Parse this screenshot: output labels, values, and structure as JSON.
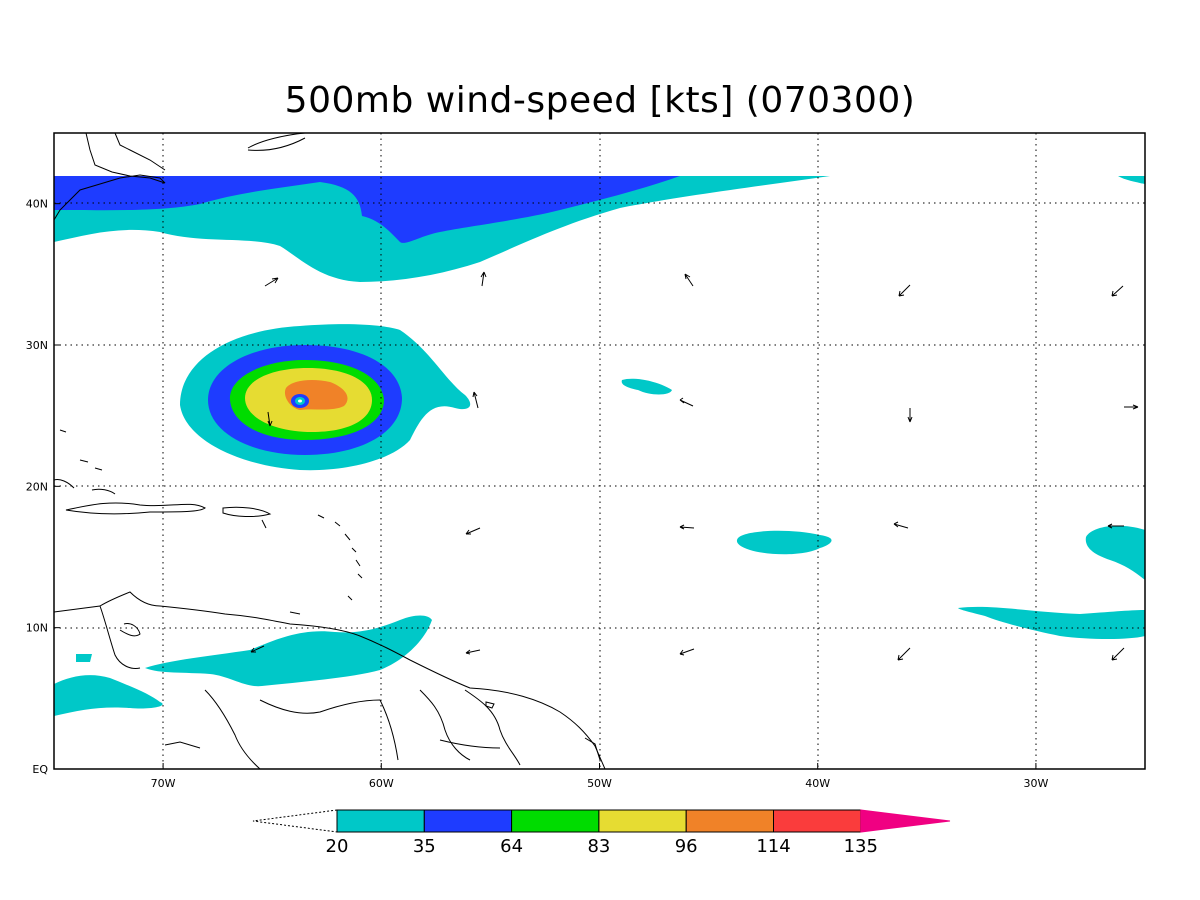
{
  "title": "500mb wind-speed [kts] (070300)",
  "map": {
    "lon_range": [
      -75,
      -25
    ],
    "lat_range": [
      0,
      45
    ],
    "lon_ticks": [
      {
        "value": -70,
        "label": "70W"
      },
      {
        "value": -60,
        "label": "60W"
      },
      {
        "value": -50,
        "label": "50W"
      },
      {
        "value": -40,
        "label": "40W"
      },
      {
        "value": -30,
        "label": "30W"
      }
    ],
    "lat_ticks": [
      {
        "value": 0,
        "label": "EQ"
      },
      {
        "value": 10,
        "label": "10N"
      },
      {
        "value": 20,
        "label": "20N"
      },
      {
        "value": 30,
        "label": "30N"
      },
      {
        "value": 40,
        "label": "40N"
      }
    ],
    "grid": "dotted"
  },
  "colorbar": {
    "levels": [
      "20",
      "35",
      "64",
      "83",
      "96",
      "114",
      "135"
    ],
    "colors": [
      "#00c8c8",
      "#1e3cff",
      "#00dc00",
      "#e6dc32",
      "#f08228",
      "#fa3c3c",
      "#f00082"
    ]
  }
}
